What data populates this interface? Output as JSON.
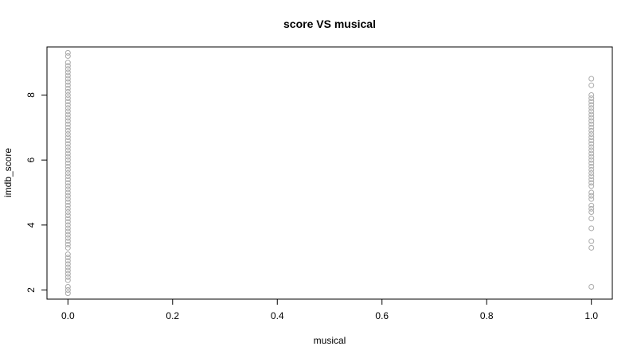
{
  "chart_data": {
    "type": "scatter",
    "title": "score VS musical",
    "xlabel": "musical",
    "ylabel": "imdb_score",
    "xlim": [
      -0.04,
      1.04
    ],
    "ylim": [
      1.72,
      9.48
    ],
    "x_ticks": [
      0.0,
      0.2,
      0.4,
      0.6,
      0.8,
      1.0
    ],
    "x_tick_labels": [
      "0.0",
      "0.2",
      "0.4",
      "0.6",
      "0.8",
      "1.0"
    ],
    "y_ticks": [
      2,
      4,
      6,
      8
    ],
    "y_tick_labels": [
      "2",
      "4",
      "6",
      "8"
    ],
    "grid": false,
    "legend": "none",
    "marker": "open-circle",
    "point_color": "#a9a9a9",
    "series": [
      {
        "x": 0,
        "values": [
          1.9,
          2.0,
          2.1,
          2.3,
          2.4,
          2.5,
          2.6,
          2.7,
          2.8,
          2.9,
          3.0,
          3.1,
          3.3,
          3.4,
          3.5,
          3.6,
          3.7,
          3.8,
          3.9,
          4.0,
          4.1,
          4.2,
          4.3,
          4.4,
          4.5,
          4.6,
          4.7,
          4.8,
          4.9,
          5.0,
          5.1,
          5.2,
          5.3,
          5.4,
          5.5,
          5.6,
          5.7,
          5.8,
          5.9,
          6.0,
          6.1,
          6.2,
          6.3,
          6.4,
          6.5,
          6.6,
          6.7,
          6.8,
          6.9,
          7.0,
          7.1,
          7.2,
          7.3,
          7.4,
          7.5,
          7.6,
          7.7,
          7.8,
          7.9,
          8.0,
          8.1,
          8.2,
          8.3,
          8.4,
          8.5,
          8.6,
          8.7,
          8.8,
          8.9,
          9.0,
          9.2,
          9.3
        ]
      },
      {
        "x": 1,
        "values": [
          2.1,
          3.3,
          3.5,
          3.9,
          4.2,
          4.4,
          4.5,
          4.6,
          4.8,
          4.9,
          5.0,
          5.2,
          5.3,
          5.4,
          5.5,
          5.6,
          5.7,
          5.8,
          5.9,
          6.0,
          6.1,
          6.2,
          6.3,
          6.4,
          6.5,
          6.6,
          6.7,
          6.8,
          6.9,
          7.0,
          7.1,
          7.2,
          7.3,
          7.4,
          7.5,
          7.6,
          7.7,
          7.8,
          7.9,
          8.0,
          8.3,
          8.5
        ]
      }
    ]
  }
}
